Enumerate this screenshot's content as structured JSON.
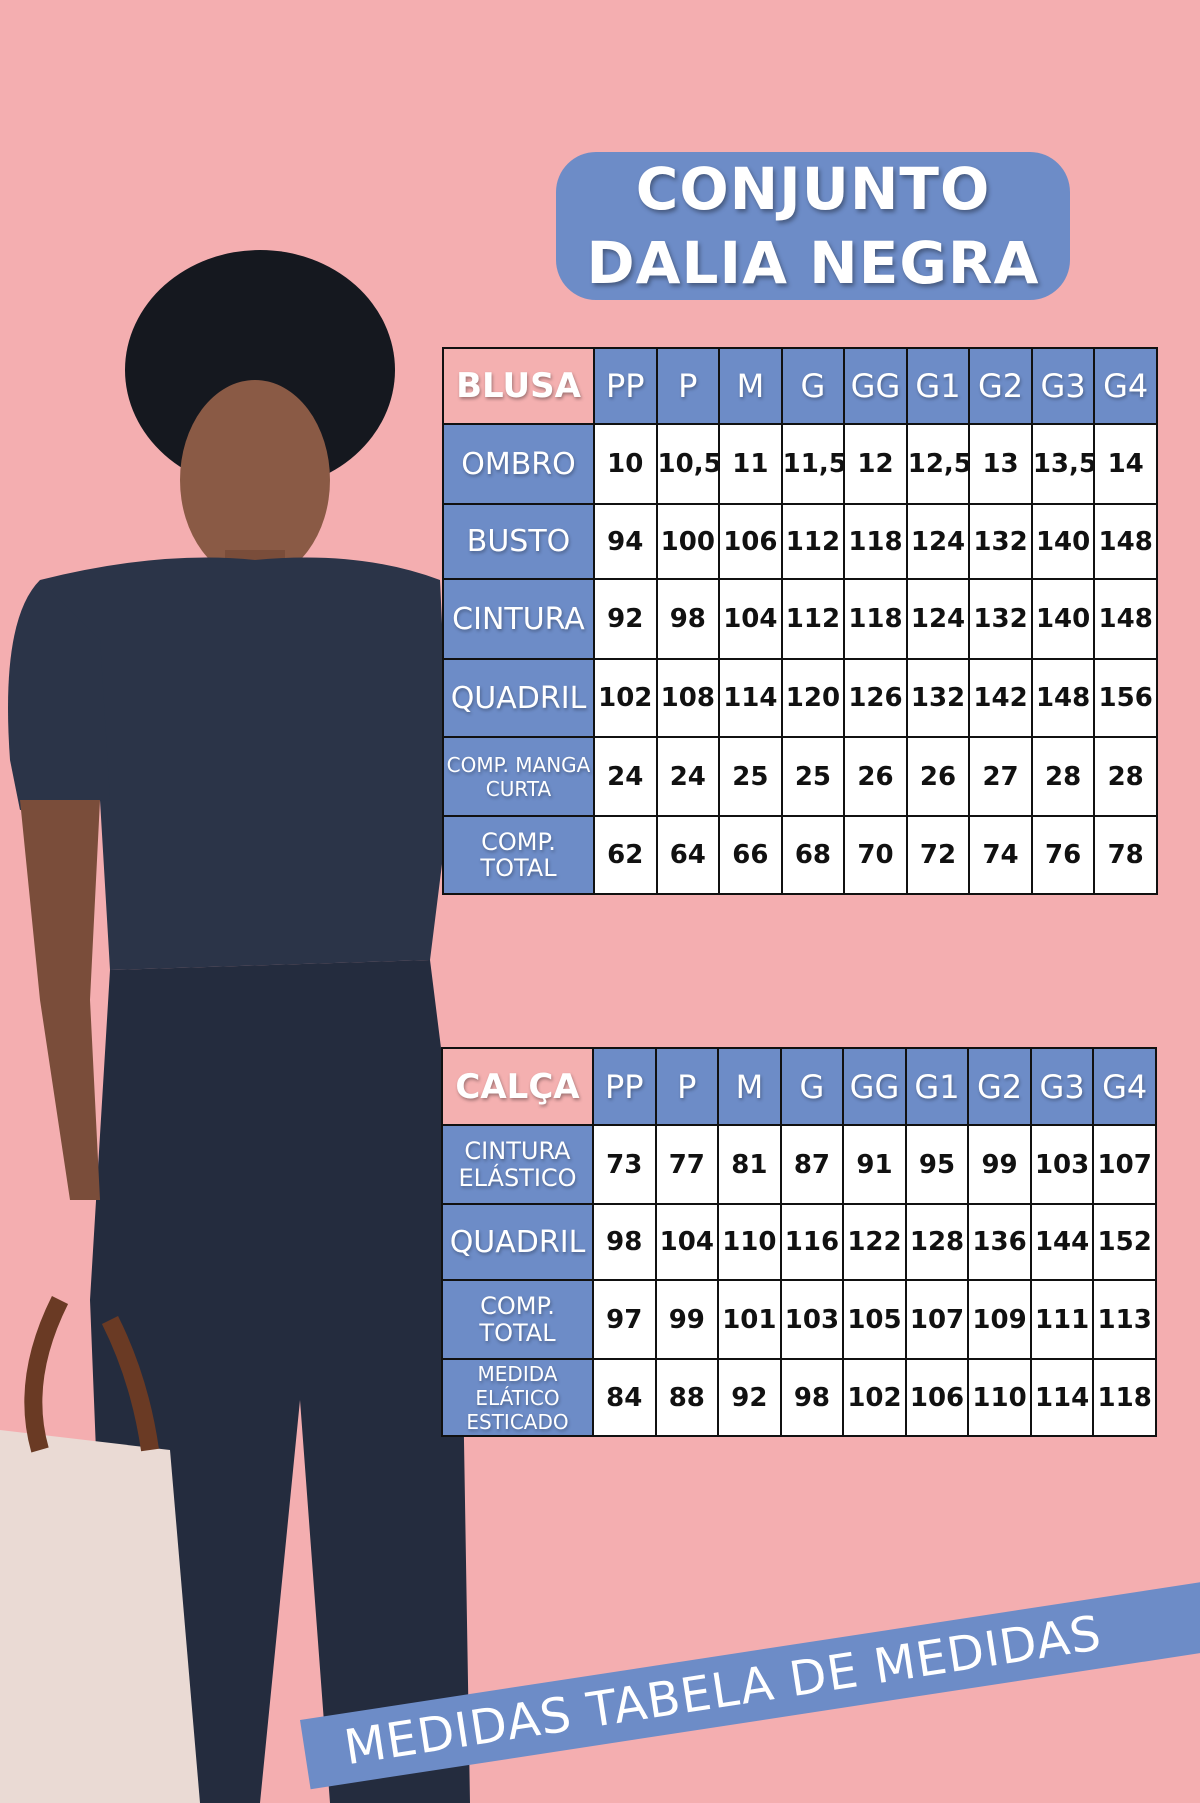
{
  "title": {
    "line1": "CONJUNTO",
    "line2": "DALIA NEGRA"
  },
  "colors": {
    "background": "#f4aeb0",
    "accent_blue": "#6d8cc7",
    "header_pink": "#f4b0b0"
  },
  "sizes": [
    "PP",
    "P",
    "M",
    "G",
    "GG",
    "G1",
    "G2",
    "G3",
    "G4"
  ],
  "blusa": {
    "label": "BLUSA",
    "rows": [
      {
        "label": "OMBRO",
        "values": [
          "10",
          "10,5",
          "11",
          "11,5",
          "12",
          "12,5",
          "13",
          "13,5",
          "14"
        ]
      },
      {
        "label": "BUSTO",
        "values": [
          "94",
          "100",
          "106",
          "112",
          "118",
          "124",
          "132",
          "140",
          "148"
        ]
      },
      {
        "label": "CINTURA",
        "values": [
          "92",
          "98",
          "104",
          "112",
          "118",
          "124",
          "132",
          "140",
          "148"
        ]
      },
      {
        "label": "QUADRIL",
        "values": [
          "102",
          "108",
          "114",
          "120",
          "126",
          "132",
          "142",
          "148",
          "156"
        ]
      },
      {
        "label": "COMP. MANGA CURTA",
        "values": [
          "24",
          "24",
          "25",
          "25",
          "26",
          "26",
          "27",
          "28",
          "28"
        ]
      },
      {
        "label": "COMP. TOTAL",
        "values": [
          "62",
          "64",
          "66",
          "68",
          "70",
          "72",
          "74",
          "76",
          "78"
        ]
      }
    ]
  },
  "calca": {
    "label": "CALÇA",
    "rows": [
      {
        "label": "CINTURA ELÁSTICO",
        "values": [
          "73",
          "77",
          "81",
          "87",
          "91",
          "95",
          "99",
          "103",
          "107"
        ]
      },
      {
        "label": "QUADRIL",
        "values": [
          "98",
          "104",
          "110",
          "116",
          "122",
          "128",
          "136",
          "144",
          "152"
        ]
      },
      {
        "label": "COMP. TOTAL",
        "values": [
          "97",
          "99",
          "101",
          "103",
          "105",
          "107",
          "109",
          "111",
          "113"
        ]
      },
      {
        "label": "MEDIDA ELÁTICO ESTICADO",
        "values": [
          "84",
          "88",
          "92",
          "98",
          "102",
          "106",
          "110",
          "114",
          "118"
        ]
      }
    ]
  },
  "banner": "MEDIDAS TABELA DE MEDIDAS"
}
